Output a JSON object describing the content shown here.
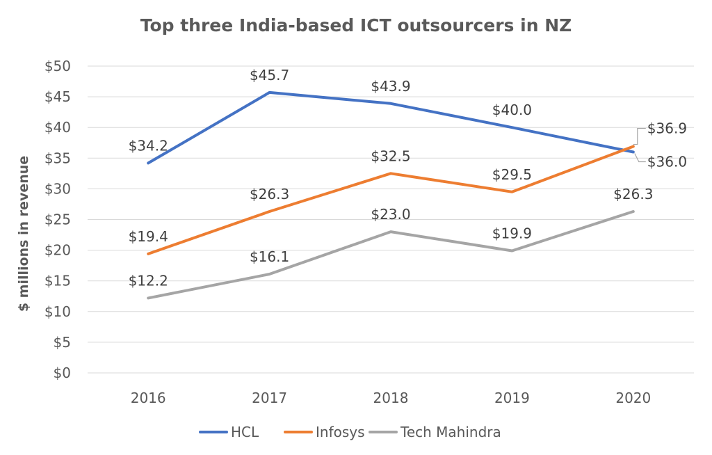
{
  "chart_data": {
    "type": "line",
    "title": "Top three India-based ICT outsourcers in NZ",
    "xlabel": "",
    "ylabel": "$ millions in revenue",
    "categories": [
      "2016",
      "2017",
      "2018",
      "2019",
      "2020"
    ],
    "ylim": [
      0,
      50
    ],
    "yticks": [
      0,
      5,
      10,
      15,
      20,
      25,
      30,
      35,
      40,
      45,
      50
    ],
    "ytick_labels": [
      "$0",
      "$5",
      "$10",
      "$15",
      "$20",
      "$25",
      "$30",
      "$35",
      "$40",
      "$45",
      "$50"
    ],
    "grid": true,
    "legend_position": "bottom",
    "series": [
      {
        "name": "HCL",
        "color": "#4472c4",
        "values": [
          34.2,
          45.7,
          43.9,
          40.0,
          36.0
        ],
        "labels": [
          "$34.2",
          "$45.7",
          "$43.9",
          "$40.0",
          "$36.0"
        ]
      },
      {
        "name": "Infosys",
        "color": "#ed7d31",
        "values": [
          19.4,
          26.3,
          32.5,
          29.5,
          36.9
        ],
        "labels": [
          "$19.4",
          "$26.3",
          "$32.5",
          "$29.5",
          "$36.9"
        ]
      },
      {
        "name": "Tech Mahindra",
        "color": "#a5a5a5",
        "values": [
          12.2,
          16.1,
          23.0,
          19.9,
          26.3
        ],
        "labels": [
          "$12.2",
          "$16.1",
          "$23.0",
          "$19.9",
          "$26.3"
        ]
      }
    ]
  }
}
